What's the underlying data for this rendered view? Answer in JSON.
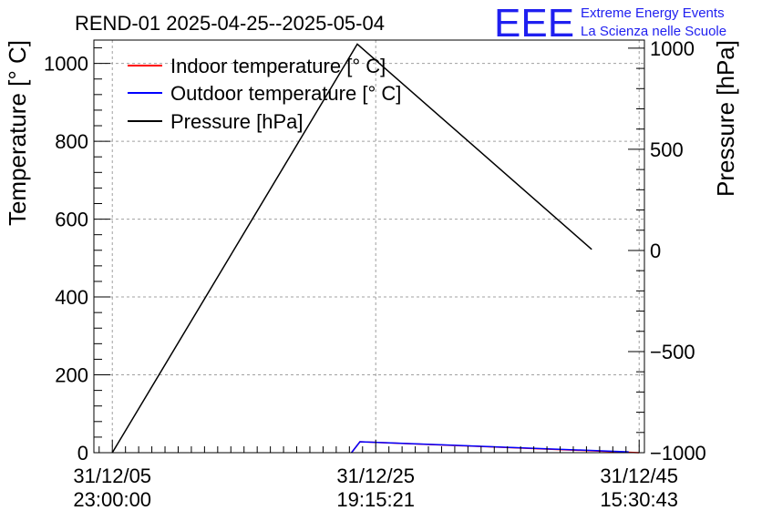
{
  "header": {
    "title": "REND-01 2025-04-25--2025-05-04",
    "logo_mark": "EEE",
    "logo_line1": "Extreme Energy Events",
    "logo_line2": "La Scienza nelle Scuole"
  },
  "colors": {
    "indoor": "#ff0000",
    "outdoor": "#0000ff",
    "pressure": "#000000",
    "logo": "#1f1ff0",
    "grid": "#a0a0a0"
  },
  "chart_data": {
    "type": "line",
    "title": "REND-01 2025-04-25--2025-05-04",
    "ylabel": "Temperature [° C]",
    "y2label": "Pressure [hPa]",
    "x_ticks": [
      {
        "date": "31/12/05",
        "time": "23:00:00",
        "pos": 0.0
      },
      {
        "date": "31/12/25",
        "time": "19:15:21",
        "pos": 0.5
      },
      {
        "date": "31/12/45",
        "time": "15:30:43",
        "pos": 1.0
      }
    ],
    "xlim": [
      -0.035,
      1.01
    ],
    "ylim": [
      0,
      1060
    ],
    "y_ticks": [
      "0",
      "200",
      "400",
      "600",
      "800",
      "1000"
    ],
    "y_tick_values": [
      0,
      200,
      400,
      600,
      800,
      1000
    ],
    "y2lim": [
      -1000,
      1040
    ],
    "y2_ticks": [
      "−1000",
      "−500",
      "0",
      "500",
      "1000"
    ],
    "y2_tick_values": [
      -1000,
      -500,
      0,
      500,
      1000
    ],
    "grid": true,
    "legend_position": "top-left",
    "series": [
      {
        "name": "Indoor temperature [° C]",
        "axis": "left",
        "color": "#ff0000",
        "x": [
          0.454,
          0.47,
          1.0
        ],
        "y": [
          0,
          28,
          0
        ]
      },
      {
        "name": "Outdoor temperature [° C]",
        "axis": "left",
        "color": "#0000ff",
        "x": [
          0.454,
          0.47,
          0.98
        ],
        "y": [
          0,
          28,
          2
        ]
      },
      {
        "name": "Pressure [hPa]",
        "axis": "right",
        "color": "#000000",
        "x": [
          0.0,
          0.465,
          0.91
        ],
        "y": [
          -1000,
          1020,
          5
        ]
      }
    ]
  }
}
